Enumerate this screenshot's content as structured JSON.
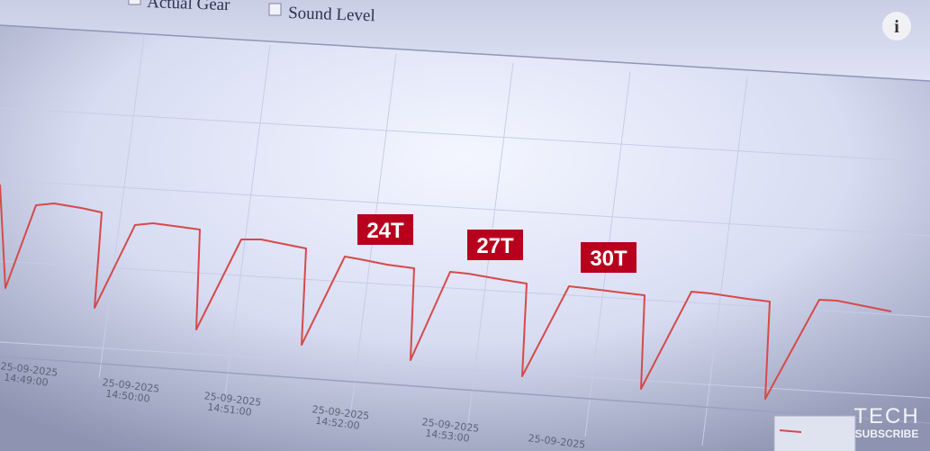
{
  "toolbar": {
    "checkboxes": [
      "Actual Gear",
      "Sound Level"
    ]
  },
  "info_icon": "i",
  "annotations": [
    "24T",
    "27T",
    "30T"
  ],
  "x_axis_labels": [
    {
      "date": "25-09-2025",
      "time": "14:49:00"
    },
    {
      "date": "25-09-2025",
      "time": "14:50:00"
    },
    {
      "date": "25-09-2025",
      "time": "14:51:00"
    },
    {
      "date": "25-09-2025",
      "time": "14:52:00"
    },
    {
      "date": "25-09-2025",
      "time": "14:53:00"
    },
    {
      "date": "25-09-2025"
    }
  ],
  "watermark": {
    "line1": "TECH",
    "line2": "SUBSCRIBE"
  }
}
